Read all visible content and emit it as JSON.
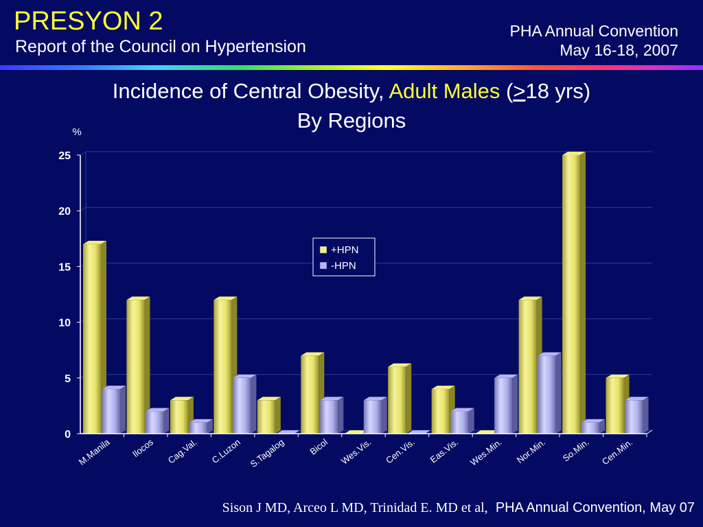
{
  "header": {
    "title": "PRESYON 2",
    "subtitle": "Report of the Council on Hypertension",
    "convention_name": "PHA Annual Convention",
    "convention_date": "May 16-18, 2007"
  },
  "chart_heading": {
    "line1_part1": "Incidence of Central Obesity, ",
    "line1_highlight": "Adult Males",
    "line1_part2": " (",
    "line1_underlined": ">",
    "line1_part3": "18 yrs)",
    "line2": "By Regions"
  },
  "footer": {
    "authors": "Sison J MD, Arceo L MD, Trinidad E. MD et al,",
    "convention": "PHA Annual Convention, May 07"
  },
  "colors": {
    "background": "#040a62",
    "title": "#ffff33",
    "hpn_pos": "#f3f08a",
    "hpn_neg": "#b6b6f6"
  },
  "chart_data": {
    "type": "bar",
    "ylabel": "%",
    "ylim": [
      0,
      25
    ],
    "yticks": [
      0,
      5,
      10,
      15,
      20,
      25
    ],
    "categories": [
      "M.Manila",
      "Ilocos",
      "Cag.Val.",
      "C.Luzon",
      "S.Tagalog",
      "Bicol",
      "Wes.Vis.",
      "Cen.Vis.",
      "Eas.Vis.",
      "Wes.Min.",
      "Nor.Min.",
      "So.Min.",
      "Cen.Min."
    ],
    "series": [
      {
        "name": "+HPN",
        "values": [
          17,
          12,
          3,
          12,
          3,
          7,
          0,
          6,
          4,
          0,
          12,
          25,
          5
        ]
      },
      {
        "name": "-HPN",
        "values": [
          4,
          2,
          1,
          5,
          0,
          3,
          3,
          0,
          2,
          5,
          7,
          1,
          3
        ]
      }
    ],
    "legend_position": "center",
    "grid": true
  }
}
